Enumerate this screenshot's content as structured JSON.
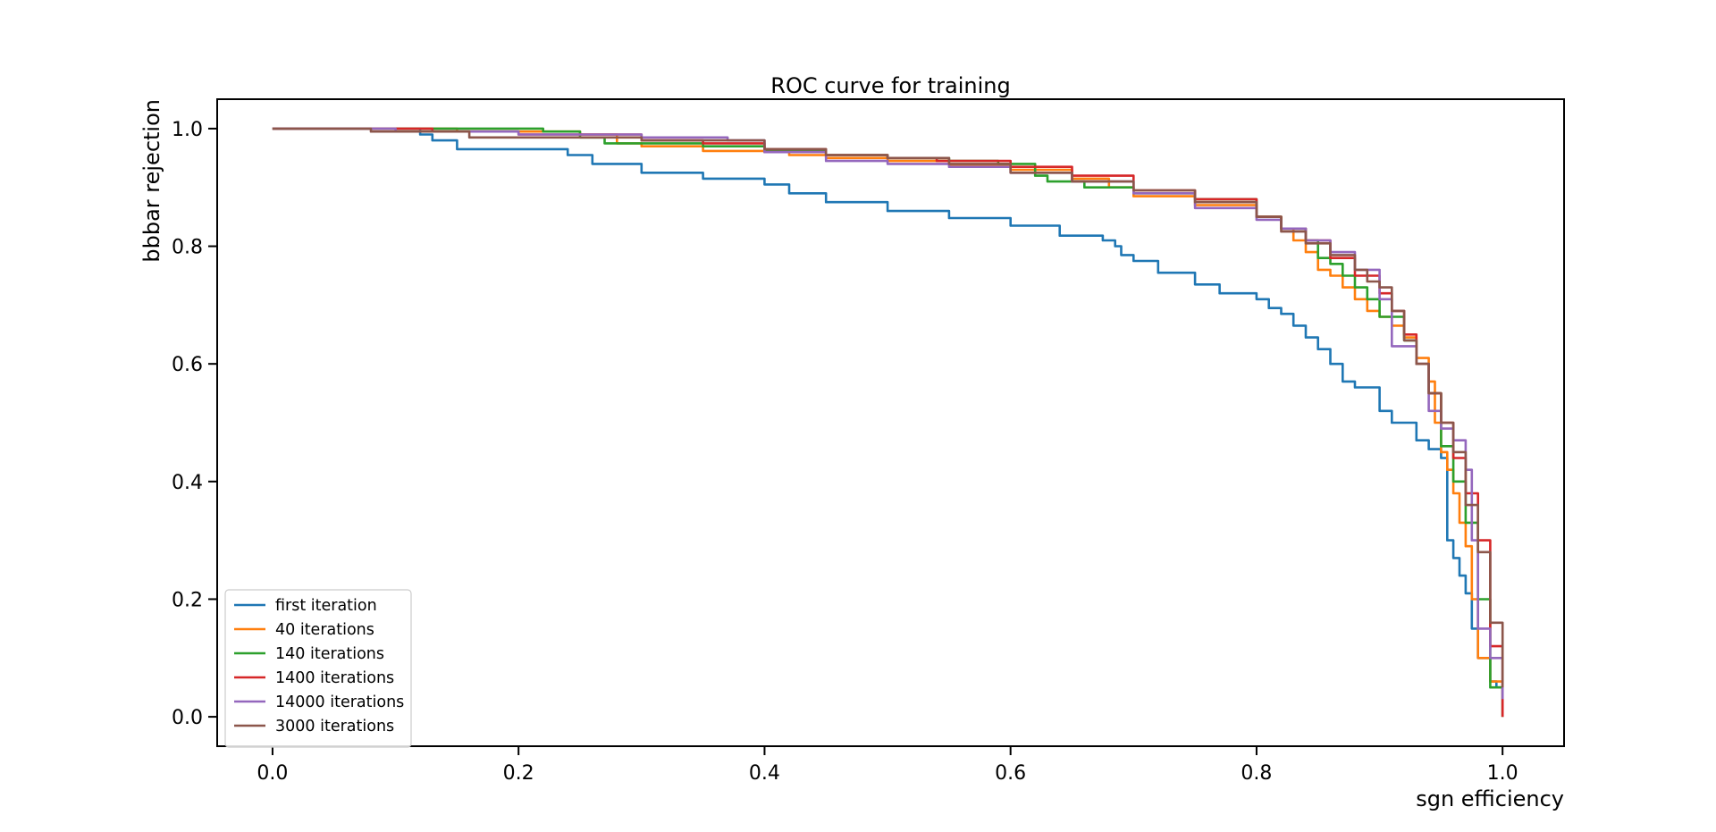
{
  "chart_data": {
    "type": "line",
    "title": "ROC curve for training",
    "xlabel": "sgn efficiency",
    "ylabel": "bbbar rejection",
    "xlim": [
      -0.045,
      1.05
    ],
    "ylim": [
      -0.05,
      1.05
    ],
    "xticks": [
      "0.0",
      "0.2",
      "0.4",
      "0.6",
      "0.8",
      "1.0"
    ],
    "yticks": [
      "0.0",
      "0.2",
      "0.4",
      "0.6",
      "0.8",
      "1.0"
    ],
    "grid": false,
    "legend_position": "lower-left",
    "series": [
      {
        "name": "first iteration",
        "color": "#1f77b4",
        "points": [
          [
            0.0,
            1.0
          ],
          [
            0.1,
            1.0
          ],
          [
            0.12,
            0.99
          ],
          [
            0.13,
            0.98
          ],
          [
            0.15,
            0.965
          ],
          [
            0.22,
            0.965
          ],
          [
            0.24,
            0.955
          ],
          [
            0.26,
            0.94
          ],
          [
            0.3,
            0.925
          ],
          [
            0.35,
            0.915
          ],
          [
            0.4,
            0.905
          ],
          [
            0.42,
            0.89
          ],
          [
            0.45,
            0.875
          ],
          [
            0.5,
            0.86
          ],
          [
            0.55,
            0.848
          ],
          [
            0.6,
            0.835
          ],
          [
            0.64,
            0.818
          ],
          [
            0.675,
            0.81
          ],
          [
            0.685,
            0.8
          ],
          [
            0.69,
            0.785
          ],
          [
            0.7,
            0.775
          ],
          [
            0.72,
            0.755
          ],
          [
            0.75,
            0.735
          ],
          [
            0.77,
            0.72
          ],
          [
            0.8,
            0.71
          ],
          [
            0.81,
            0.695
          ],
          [
            0.82,
            0.685
          ],
          [
            0.83,
            0.665
          ],
          [
            0.84,
            0.645
          ],
          [
            0.85,
            0.625
          ],
          [
            0.86,
            0.6
          ],
          [
            0.87,
            0.57
          ],
          [
            0.88,
            0.56
          ],
          [
            0.9,
            0.545
          ],
          [
            0.9,
            0.52
          ],
          [
            0.91,
            0.5
          ],
          [
            0.93,
            0.47
          ],
          [
            0.94,
            0.455
          ],
          [
            0.95,
            0.44
          ],
          [
            0.955,
            0.4
          ],
          [
            0.955,
            0.3
          ],
          [
            0.96,
            0.27
          ],
          [
            0.965,
            0.24
          ],
          [
            0.97,
            0.21
          ],
          [
            0.975,
            0.15
          ],
          [
            0.98,
            0.1
          ],
          [
            0.99,
            0.06
          ],
          [
            0.995,
            0.05
          ],
          [
            1.0,
            0.0
          ]
        ]
      },
      {
        "name": "40 iterations",
        "color": "#ff7f0e",
        "points": [
          [
            0.0,
            1.0
          ],
          [
            0.12,
            1.0
          ],
          [
            0.15,
            0.995
          ],
          [
            0.25,
            0.99
          ],
          [
            0.28,
            0.975
          ],
          [
            0.3,
            0.97
          ],
          [
            0.35,
            0.962
          ],
          [
            0.4,
            0.96
          ],
          [
            0.42,
            0.955
          ],
          [
            0.45,
            0.95
          ],
          [
            0.5,
            0.945
          ],
          [
            0.55,
            0.938
          ],
          [
            0.6,
            0.93
          ],
          [
            0.65,
            0.915
          ],
          [
            0.68,
            0.9
          ],
          [
            0.7,
            0.885
          ],
          [
            0.75,
            0.87
          ],
          [
            0.8,
            0.85
          ],
          [
            0.82,
            0.83
          ],
          [
            0.83,
            0.81
          ],
          [
            0.84,
            0.79
          ],
          [
            0.85,
            0.76
          ],
          [
            0.86,
            0.75
          ],
          [
            0.87,
            0.73
          ],
          [
            0.88,
            0.71
          ],
          [
            0.89,
            0.69
          ],
          [
            0.9,
            0.68
          ],
          [
            0.91,
            0.665
          ],
          [
            0.92,
            0.645
          ],
          [
            0.93,
            0.61
          ],
          [
            0.94,
            0.57
          ],
          [
            0.945,
            0.5
          ],
          [
            0.95,
            0.45
          ],
          [
            0.955,
            0.42
          ],
          [
            0.96,
            0.38
          ],
          [
            0.965,
            0.33
          ],
          [
            0.97,
            0.29
          ],
          [
            0.975,
            0.2
          ],
          [
            0.98,
            0.1
          ],
          [
            0.99,
            0.06
          ],
          [
            1.0,
            0.0
          ]
        ]
      },
      {
        "name": "140 iterations",
        "color": "#2ca02c",
        "points": [
          [
            0.0,
            1.0
          ],
          [
            0.15,
            1.0
          ],
          [
            0.22,
            0.995
          ],
          [
            0.25,
            0.985
          ],
          [
            0.27,
            0.975
          ],
          [
            0.35,
            0.97
          ],
          [
            0.4,
            0.962
          ],
          [
            0.45,
            0.955
          ],
          [
            0.5,
            0.95
          ],
          [
            0.55,
            0.945
          ],
          [
            0.59,
            0.94
          ],
          [
            0.62,
            0.92
          ],
          [
            0.63,
            0.91
          ],
          [
            0.66,
            0.9
          ],
          [
            0.7,
            0.89
          ],
          [
            0.75,
            0.88
          ],
          [
            0.8,
            0.85
          ],
          [
            0.82,
            0.83
          ],
          [
            0.84,
            0.81
          ],
          [
            0.85,
            0.78
          ],
          [
            0.86,
            0.77
          ],
          [
            0.87,
            0.75
          ],
          [
            0.88,
            0.73
          ],
          [
            0.89,
            0.71
          ],
          [
            0.9,
            0.68
          ],
          [
            0.92,
            0.64
          ],
          [
            0.93,
            0.6
          ],
          [
            0.94,
            0.55
          ],
          [
            0.95,
            0.46
          ],
          [
            0.96,
            0.4
          ],
          [
            0.97,
            0.33
          ],
          [
            0.98,
            0.2
          ],
          [
            0.99,
            0.05
          ],
          [
            1.0,
            0.0
          ]
        ]
      },
      {
        "name": "1400 iterations",
        "color": "#d62728",
        "points": [
          [
            0.0,
            1.0
          ],
          [
            0.13,
            0.995
          ],
          [
            0.2,
            0.99
          ],
          [
            0.3,
            0.98
          ],
          [
            0.35,
            0.975
          ],
          [
            0.4,
            0.965
          ],
          [
            0.45,
            0.955
          ],
          [
            0.5,
            0.95
          ],
          [
            0.54,
            0.945
          ],
          [
            0.6,
            0.935
          ],
          [
            0.65,
            0.92
          ],
          [
            0.7,
            0.895
          ],
          [
            0.75,
            0.88
          ],
          [
            0.8,
            0.85
          ],
          [
            0.82,
            0.83
          ],
          [
            0.84,
            0.81
          ],
          [
            0.86,
            0.78
          ],
          [
            0.88,
            0.75
          ],
          [
            0.9,
            0.72
          ],
          [
            0.91,
            0.69
          ],
          [
            0.92,
            0.65
          ],
          [
            0.93,
            0.6
          ],
          [
            0.94,
            0.55
          ],
          [
            0.95,
            0.5
          ],
          [
            0.96,
            0.44
          ],
          [
            0.97,
            0.38
          ],
          [
            0.98,
            0.3
          ],
          [
            0.99,
            0.12
          ],
          [
            1.0,
            0.0
          ]
        ]
      },
      {
        "name": "14000 iterations",
        "color": "#9467bd",
        "points": [
          [
            0.0,
            1.0
          ],
          [
            0.1,
            0.995
          ],
          [
            0.2,
            0.99
          ],
          [
            0.3,
            0.985
          ],
          [
            0.37,
            0.98
          ],
          [
            0.4,
            0.96
          ],
          [
            0.45,
            0.945
          ],
          [
            0.5,
            0.94
          ],
          [
            0.55,
            0.935
          ],
          [
            0.6,
            0.925
          ],
          [
            0.65,
            0.91
          ],
          [
            0.7,
            0.89
          ],
          [
            0.75,
            0.865
          ],
          [
            0.8,
            0.845
          ],
          [
            0.82,
            0.83
          ],
          [
            0.84,
            0.81
          ],
          [
            0.86,
            0.79
          ],
          [
            0.88,
            0.76
          ],
          [
            0.9,
            0.71
          ],
          [
            0.91,
            0.63
          ],
          [
            0.93,
            0.6
          ],
          [
            0.94,
            0.52
          ],
          [
            0.95,
            0.49
          ],
          [
            0.96,
            0.47
          ],
          [
            0.97,
            0.42
          ],
          [
            0.975,
            0.3
          ],
          [
            0.98,
            0.15
          ],
          [
            0.99,
            0.1
          ],
          [
            1.0,
            0.03
          ]
        ]
      },
      {
        "name": "3000 iterations",
        "color": "#8c564b",
        "points": [
          [
            0.0,
            1.0
          ],
          [
            0.08,
            0.995
          ],
          [
            0.16,
            0.985
          ],
          [
            0.3,
            0.98
          ],
          [
            0.4,
            0.965
          ],
          [
            0.45,
            0.955
          ],
          [
            0.5,
            0.95
          ],
          [
            0.55,
            0.94
          ],
          [
            0.6,
            0.925
          ],
          [
            0.65,
            0.91
          ],
          [
            0.7,
            0.895
          ],
          [
            0.75,
            0.875
          ],
          [
            0.8,
            0.85
          ],
          [
            0.82,
            0.825
          ],
          [
            0.84,
            0.805
          ],
          [
            0.86,
            0.785
          ],
          [
            0.88,
            0.76
          ],
          [
            0.89,
            0.74
          ],
          [
            0.9,
            0.73
          ],
          [
            0.91,
            0.69
          ],
          [
            0.92,
            0.64
          ],
          [
            0.93,
            0.6
          ],
          [
            0.94,
            0.55
          ],
          [
            0.95,
            0.5
          ],
          [
            0.96,
            0.45
          ],
          [
            0.97,
            0.36
          ],
          [
            0.98,
            0.28
          ],
          [
            0.99,
            0.16
          ],
          [
            1.0,
            0.05
          ]
        ]
      }
    ]
  }
}
